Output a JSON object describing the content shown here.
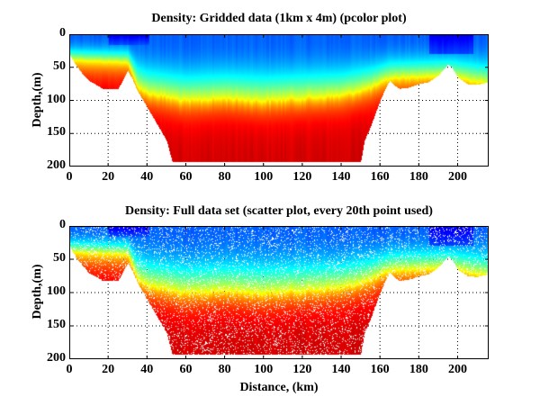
{
  "chart_data": [
    {
      "type": "heatmap",
      "title": "Density: Gridded data (1km x 4m) (pcolor plot)",
      "xlabel": "",
      "ylabel": "Depth,(m)",
      "xlim": [
        0,
        216
      ],
      "ylim": [
        200,
        0
      ],
      "y_reversed": true,
      "xticks": [
        0,
        20,
        40,
        60,
        80,
        100,
        120,
        140,
        160,
        180,
        200
      ],
      "yticks": [
        0,
        50,
        100,
        150,
        200
      ],
      "grid": true,
      "colormap": "jet",
      "render": "pcolor"
    },
    {
      "type": "scatter",
      "title": "Density: Full data set (scatter plot, every 20th point used)",
      "xlabel": "Distance, (km)",
      "ylabel": "Depth,(m)",
      "xlim": [
        0,
        216
      ],
      "ylim": [
        200,
        0
      ],
      "y_reversed": true,
      "xticks": [
        0,
        20,
        40,
        60,
        80,
        100,
        120,
        140,
        160,
        180,
        200
      ],
      "yticks": [
        0,
        50,
        100,
        150,
        200
      ],
      "grid": true,
      "colormap": "jet",
      "render": "scatter"
    }
  ],
  "section": {
    "seafloor_depth": {
      "x": [
        0,
        3,
        6,
        10,
        15,
        17,
        25,
        27,
        30,
        32,
        35,
        40,
        45,
        50,
        53,
        150,
        152,
        155,
        160,
        163,
        165,
        167,
        170,
        175,
        180,
        185,
        190,
        195,
        197,
        200,
        205,
        210,
        216
      ],
      "y": [
        30,
        45,
        57,
        70,
        78,
        82,
        82,
        72,
        55,
        65,
        85,
        110,
        135,
        160,
        193,
        193,
        160,
        140,
        100,
        80,
        70,
        76,
        82,
        80,
        75,
        72,
        62,
        45,
        50,
        65,
        75,
        76,
        72
      ]
    },
    "pycnocline_depth": {
      "x": [
        0,
        10,
        30,
        35,
        40,
        60,
        80,
        100,
        120,
        140,
        155,
        165,
        180,
        195,
        216
      ],
      "y": [
        38,
        40,
        42,
        78,
        88,
        100,
        96,
        100,
        96,
        92,
        80,
        66,
        64,
        62,
        75
      ]
    },
    "surface_low_density_patches": [
      {
        "x": [
          20,
          41
        ],
        "depth": [
          0,
          12
        ]
      },
      {
        "x": [
          185,
          208
        ],
        "depth": [
          0,
          25
        ]
      }
    ]
  }
}
